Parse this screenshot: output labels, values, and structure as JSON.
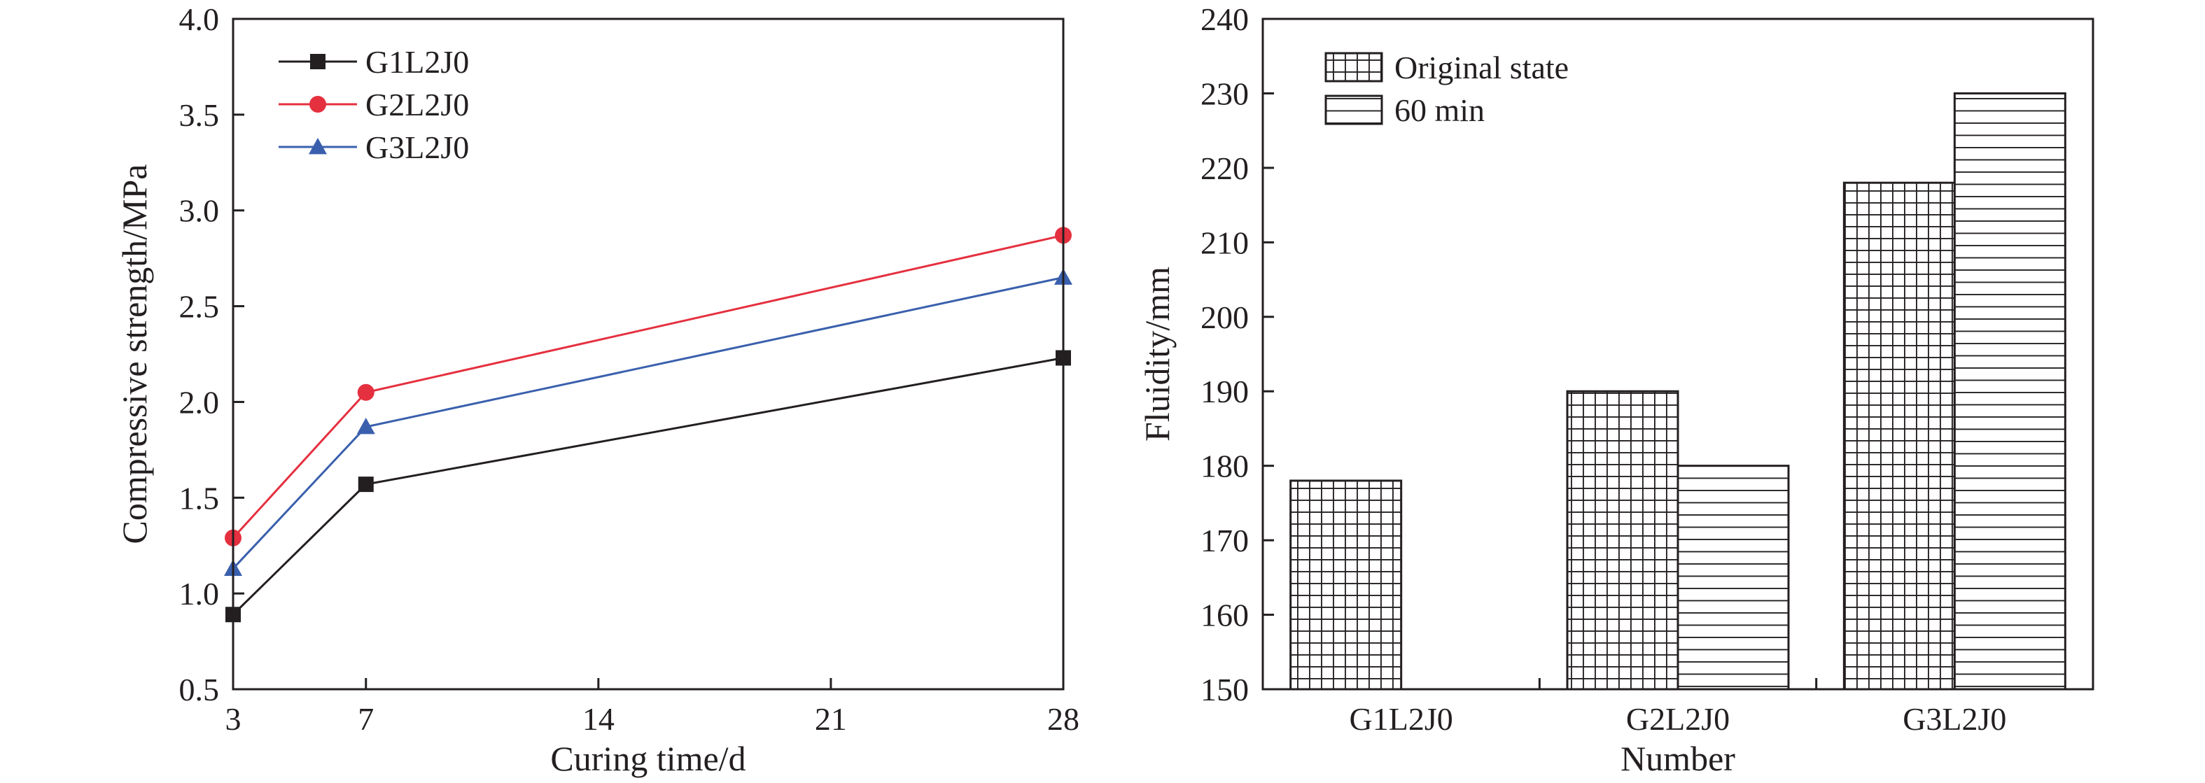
{
  "chart_data": [
    {
      "type": "line",
      "xlabel": "Curing time/d",
      "ylabel": "Compressive strength/MPa",
      "xlim": [
        3,
        28
      ],
      "ylim": [
        0.5,
        4.0
      ],
      "xticks": [
        3,
        7,
        14,
        21,
        28
      ],
      "yticks": [
        "0.5",
        "1.0",
        "1.5",
        "2.0",
        "2.5",
        "3.0",
        "3.5",
        "4.0"
      ],
      "x": [
        3,
        7,
        28
      ],
      "legend_position": "top-left",
      "grid": false,
      "series": [
        {
          "name": "G1L2J0",
          "values": [
            0.89,
            1.57,
            2.23
          ],
          "color": "#231f20",
          "marker": "square"
        },
        {
          "name": "G2L2J0",
          "values": [
            1.29,
            2.05,
            2.87
          ],
          "color": "#e5303f",
          "marker": "circle"
        },
        {
          "name": "G3L2J0",
          "values": [
            1.13,
            1.87,
            2.65
          ],
          "color": "#3a60ad",
          "marker": "triangle"
        }
      ]
    },
    {
      "type": "bar",
      "xlabel": "Number",
      "ylabel": "Fluidity/mm",
      "ylim": [
        150,
        240
      ],
      "yticks": [
        "150",
        "160",
        "170",
        "180",
        "190",
        "200",
        "210",
        "220",
        "230",
        "240"
      ],
      "categories": [
        "G1L2J0",
        "G2L2J0",
        "G3L2J0"
      ],
      "legend_position": "top-left",
      "grid": false,
      "series": [
        {
          "name": "Original state",
          "values": [
            178,
            190,
            218
          ],
          "pattern": "grid"
        },
        {
          "name": "60 min",
          "values": [
            150,
            180,
            230
          ],
          "pattern": "horizontal"
        }
      ]
    }
  ]
}
